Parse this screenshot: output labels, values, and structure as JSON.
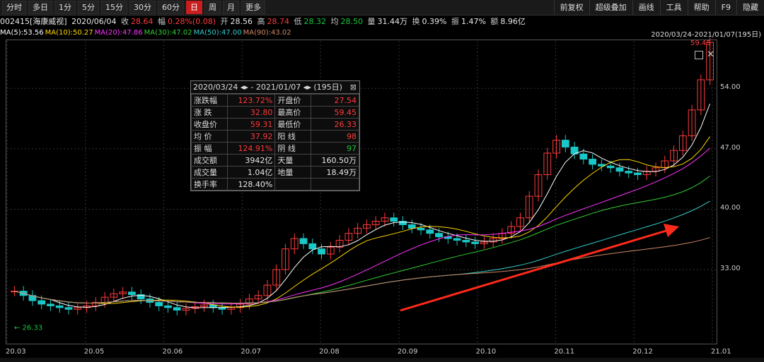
{
  "toolbar": {
    "periods": [
      "分时",
      "多日",
      "1分",
      "5分",
      "15分",
      "30分",
      "60分",
      "日",
      "周",
      "月",
      "更多"
    ],
    "active_index": 7,
    "right_items": [
      "前复权",
      "超级叠加",
      "画线",
      "工具",
      "帮助",
      "F9",
      "隐藏"
    ]
  },
  "quote": {
    "code_name": "002415[海康威视]",
    "date": "2020/06/04",
    "close_label": "收",
    "close": "28.64",
    "change_label": "幅",
    "change": "0.28%(0.08)",
    "open_label": "开",
    "open": "28.56",
    "high_label": "高",
    "high": "28.74",
    "low_label": "低",
    "low": "28.32",
    "avg_label": "均",
    "avg": "28.50",
    "volume_label": "量",
    "volume": "31.44万",
    "turnover_label": "换",
    "turnover": "0.39%",
    "amplitude_label": "振",
    "amplitude": "1.47%",
    "amount_label": "额",
    "amount": "8.96亿"
  },
  "ma": [
    {
      "label": "MA(5):53.56",
      "color": "#ffffff"
    },
    {
      "label": "MA(10):50.27",
      "color": "#ffd700"
    },
    {
      "label": "MA(20):47.86",
      "color": "#ff33ff"
    },
    {
      "label": "MA(30):47.02",
      "color": "#33cc33"
    },
    {
      "label": "MA(50):47.00",
      "color": "#33cccc"
    },
    {
      "label": "MA(90):43.02",
      "color": "#cc8866"
    }
  ],
  "range_label": "2020/03/24-2021/01/07(195日)",
  "stats": {
    "title": "2020/03/24 ◂▸ - 2021/01/07 ◂▸  (195日)",
    "rows": [
      {
        "l1": "涨跌幅",
        "v1": "123.72%",
        "c1": "red",
        "l2": "开盘价",
        "v2": "27.54",
        "c2": "red"
      },
      {
        "l1": "涨  跌",
        "v1": "32.80",
        "c1": "red",
        "l2": "最高价",
        "v2": "59.45",
        "c2": "red"
      },
      {
        "l1": "收盘价",
        "v1": "59.31",
        "c1": "red",
        "l2": "最低价",
        "v2": "26.33",
        "c2": "red"
      },
      {
        "l1": "均  价",
        "v1": "37.92",
        "c1": "red",
        "l2": "阳  线",
        "v2": "98",
        "c2": "red"
      },
      {
        "l1": "振  幅",
        "v1": "124.91%",
        "c1": "red",
        "l2": "阴  线",
        "v2": "97",
        "c2": "green"
      },
      {
        "l1": "成交额",
        "v1": "3942亿",
        "c1": "white",
        "l2": "天量",
        "v2": "160.50万",
        "c2": "white"
      },
      {
        "l1": "成交量",
        "v1": "1.04亿",
        "c1": "white",
        "l2": "地量",
        "v2": "18.49万",
        "c2": "white"
      },
      {
        "l1": "换手率",
        "v1": "128.40%",
        "c1": "white",
        "l2": "",
        "v2": "",
        "c2": "white"
      }
    ]
  },
  "chart_data": {
    "type": "line",
    "x_ticks": [
      "20.03",
      "20.05",
      "20.06",
      "20.07",
      "20.08",
      "20.09",
      "20.10",
      "20.11",
      "20.12",
      "21.01"
    ],
    "y_ticks": [
      "54.00",
      "47.00",
      "40.00",
      "33.00"
    ],
    "ylim": [
      24.5,
      59.5
    ],
    "low_label": "26.33",
    "high_label": "59.45",
    "close": [
      30.5,
      30.0,
      29.4,
      29.0,
      28.8,
      28.6,
      28.4,
      28.6,
      28.8,
      29.2,
      29.8,
      30.2,
      30.4,
      30.1,
      29.6,
      29.2,
      28.8,
      28.6,
      28.3,
      28.5,
      28.7,
      28.9,
      28.6,
      28.4,
      28.6,
      29.0,
      29.6,
      30.0,
      31.2,
      33.0,
      35.4,
      36.6,
      36.0,
      35.4,
      34.8,
      35.6,
      36.4,
      37.2,
      37.8,
      38.2,
      38.6,
      39.0,
      38.6,
      38.2,
      37.8,
      37.6,
      37.2,
      36.8,
      36.6,
      36.4,
      36.2,
      36.0,
      36.2,
      36.6,
      37.2,
      38.0,
      39.0,
      41.5,
      44.0,
      46.5,
      48.0,
      47.2,
      46.4,
      45.8,
      45.2,
      45.0,
      44.8,
      44.4,
      44.2,
      44.0,
      44.4,
      44.8,
      45.6,
      46.8,
      48.5,
      51.5,
      55.0,
      59.31
    ],
    "series_colors": [
      "#ffffff",
      "#ffd700",
      "#ff33ff",
      "#33cc33",
      "#33cccc",
      "#cc8866"
    ]
  },
  "colors": {
    "up": "#ff3b3b",
    "down": "#19c8c8",
    "arrow": "#ff2a1a",
    "frame": "#555555"
  }
}
